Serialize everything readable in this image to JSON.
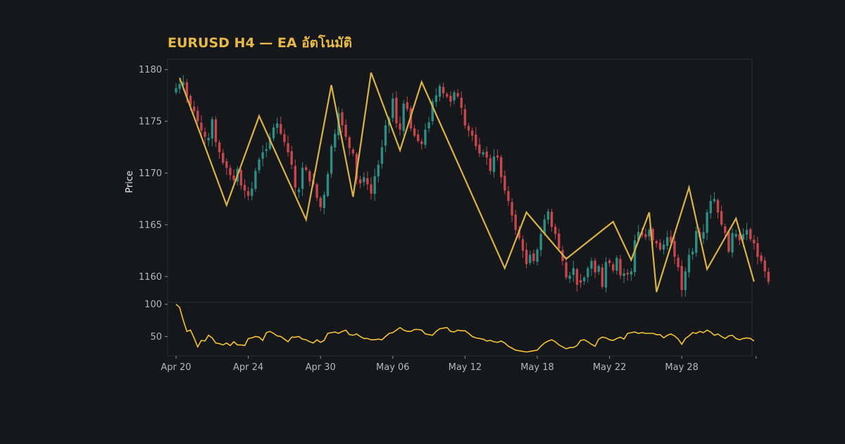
{
  "chart_data": {
    "type": "candlestick",
    "title": "EURUSD H4 — EA อัตโนมัติ",
    "ylabel": "Price",
    "price_ylim": [
      1157.5,
      1181
    ],
    "price_yticks": [
      1160,
      1165,
      1170,
      1175,
      1180
    ],
    "oscillator_ylim": [
      20,
      103
    ],
    "oscillator_yticks": [
      50,
      100
    ],
    "x_ticks": [
      "Apr 20",
      "Apr 24",
      "Apr 30",
      "May 06",
      "May 12",
      "May 18",
      "May 22",
      "May 28"
    ],
    "x_tick_index": [
      0,
      20,
      40,
      60,
      80,
      100,
      120,
      140
    ],
    "total_bars": 161,
    "close_series": [
      1178.2,
      1178.6,
      1178.8,
      1177.4,
      1176.5,
      1176.0,
      1175.0,
      1174.1,
      1173.5,
      1173.4,
      1175.2,
      1173.0,
      1172.0,
      1171.0,
      1170.5,
      1169.8,
      1169.3,
      1170.4,
      1168.8,
      1168.3,
      1167.8,
      1168.5,
      1170.2,
      1171.3,
      1172.0,
      1172.3,
      1173.4,
      1174.4,
      1174.8,
      1173.8,
      1173.0,
      1172.0,
      1170.8,
      1168.6,
      1168.4,
      1170.5,
      1170.3,
      1169.2,
      1168.9,
      1167.6,
      1166.7,
      1167.9,
      1169.9,
      1172.6,
      1173.8,
      1175.8,
      1174.6,
      1173.5,
      1172.4,
      1171.9,
      1169.4,
      1169.0,
      1169.6,
      1168.9,
      1168.0,
      1169.7,
      1170.8,
      1172.5,
      1174.6,
      1175.3,
      1177.2,
      1174.8,
      1174.2,
      1176.7,
      1176.2,
      1174.3,
      1173.6,
      1173.1,
      1172.8,
      1174.2,
      1174.9,
      1176.9,
      1177.5,
      1178.4,
      1177.7,
      1177.4,
      1176.9,
      1177.8,
      1177.4,
      1176.3,
      1174.6,
      1174.1,
      1173.6,
      1172.6,
      1171.9,
      1172.0,
      1171.5,
      1170.2,
      1171.6,
      1171.5,
      1169.6,
      1168.3,
      1167.3,
      1165.9,
      1164.5,
      1163.7,
      1162.5,
      1161.2,
      1162.1,
      1161.5,
      1162.6,
      1164.1,
      1165.5,
      1166.3,
      1164.8,
      1164.1,
      1162.7,
      1161.5,
      1159.9,
      1160.1,
      1160.8,
      1159.2,
      1159.4,
      1159.9,
      1160.8,
      1161.5,
      1160.4,
      1161.0,
      1159.0,
      1161.4,
      1161.3,
      1160.6,
      1161.8,
      1160.1,
      1160.3,
      1160.2,
      1160.5,
      1163.5,
      1164.3,
      1164.0,
      1163.8,
      1164.5,
      1163.5,
      1163.2,
      1162.6,
      1163.1,
      1163.8,
      1163.3,
      1161.9,
      1160.9,
      1158.7,
      1160.5,
      1162.1,
      1162.4,
      1164.4,
      1163.8,
      1164.3,
      1166.2,
      1167.3,
      1167.5,
      1166.2,
      1165.0,
      1164.2,
      1162.4,
      1164.2,
      1164.1,
      1163.5,
      1164.1,
      1164.5,
      1163.6,
      1163.2,
      1161.9,
      1161.5,
      1160.5,
      1159.5
    ],
    "zigzag": [
      [
        1,
        1179.2
      ],
      [
        14,
        1166.9
      ],
      [
        23,
        1175.5
      ],
      [
        36,
        1165.5
      ],
      [
        43,
        1178.5
      ],
      [
        49,
        1167.7
      ],
      [
        54,
        1179.7
      ],
      [
        62,
        1172.2
      ],
      [
        68,
        1178.8
      ],
      [
        91,
        1160.8
      ],
      [
        97,
        1166.2
      ],
      [
        108,
        1161.7
      ],
      [
        121,
        1165.3
      ],
      [
        126,
        1161.6
      ],
      [
        131,
        1166.2
      ],
      [
        133,
        1158.5
      ],
      [
        142,
        1168.6
      ],
      [
        147,
        1160.7
      ],
      [
        155,
        1165.6
      ],
      [
        160,
        1159.5
      ]
    ],
    "oscillator_series": [
      100,
      95,
      75,
      58,
      60,
      48,
      34,
      44,
      43,
      52,
      48,
      40,
      39,
      37,
      40,
      36,
      42,
      37,
      37,
      36,
      47,
      48,
      50,
      49,
      44,
      56,
      58,
      55,
      51,
      50,
      46,
      42,
      49,
      49,
      50,
      46,
      45,
      42,
      40,
      45,
      41,
      44,
      55,
      56,
      57,
      55,
      58,
      60,
      53,
      52,
      54,
      50,
      47,
      47,
      45,
      45,
      46,
      45,
      50,
      55,
      56,
      60,
      64,
      60,
      58,
      58,
      61,
      61,
      60,
      54,
      53,
      52,
      58,
      62,
      63,
      64,
      58,
      57,
      60,
      59,
      59,
      55,
      50,
      48,
      47,
      46,
      43,
      44,
      42,
      41,
      43,
      40,
      35,
      32,
      29,
      28,
      27,
      26,
      27,
      28,
      29,
      35,
      40,
      43,
      45,
      42,
      37,
      34,
      31,
      33,
      33,
      36,
      44,
      45,
      42,
      38,
      35,
      46,
      49,
      48,
      45,
      44,
      47,
      49,
      46,
      55,
      56,
      57,
      55,
      56,
      55,
      55,
      55,
      53,
      53,
      48,
      52,
      54,
      51,
      46,
      38,
      47,
      51,
      56,
      55,
      58,
      56,
      60,
      57,
      52,
      54,
      50,
      47,
      51,
      52,
      47,
      45,
      47,
      48,
      47,
      43
    ]
  }
}
